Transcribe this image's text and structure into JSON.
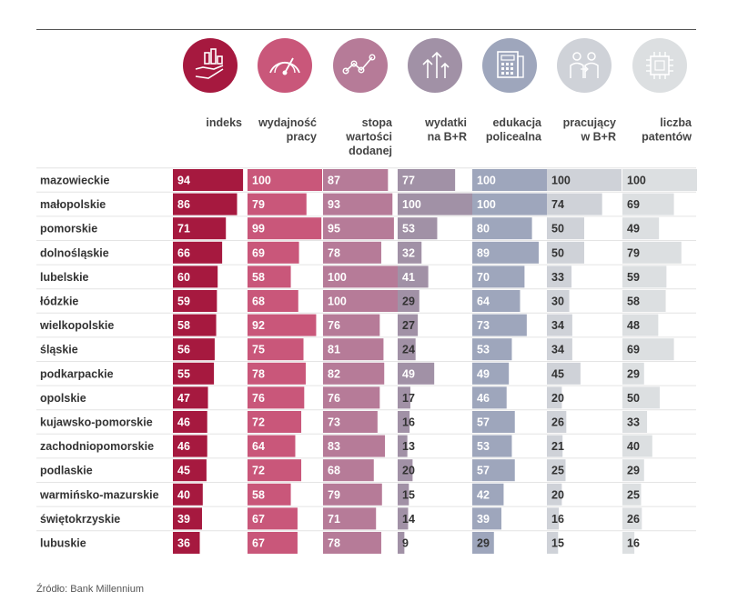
{
  "source": "Źródło:  Bank Millennium",
  "chart_data": {
    "type": "table",
    "columns": [
      {
        "key": "indeks",
        "label": [
          "indeks"
        ],
        "color": "#a6193f",
        "text_color": "#ffffff",
        "icon": "hand-chart-icon"
      },
      {
        "key": "wydajnosc",
        "label": [
          "wydajność",
          "pracy"
        ],
        "color": "#c9577a",
        "text_color": "#ffffff",
        "icon": "gauge-icon"
      },
      {
        "key": "stopa",
        "label": [
          "stopa",
          "wartości",
          "dodanej"
        ],
        "color": "#b67b98",
        "text_color": "#ffffff",
        "icon": "trend-line-icon"
      },
      {
        "key": "wydatki",
        "label": [
          "wydatki",
          "na B+R"
        ],
        "color": "#a191a6",
        "text_color": "#ffffff",
        "icon": "arrows-up-icon"
      },
      {
        "key": "edukacja",
        "label": [
          "edukacja",
          "policealna"
        ],
        "color": "#9ea6bc",
        "text_color": "#ffffff",
        "icon": "document-calculator-icon"
      },
      {
        "key": "pracujacy",
        "label": [
          "pracujący",
          "w B+R"
        ],
        "color": "#cfd2d8",
        "text_color": "#333333",
        "icon": "people-icon"
      },
      {
        "key": "patenty",
        "label": [
          "liczba",
          "patentów"
        ],
        "color": "#dcdfe1",
        "text_color": "#333333",
        "icon": "chip-icon"
      }
    ],
    "rows": [
      {
        "region": "mazowieckie",
        "values": [
          94,
          100,
          87,
          77,
          100,
          100,
          100
        ]
      },
      {
        "region": "małopolskie",
        "values": [
          86,
          79,
          93,
          100,
          100,
          74,
          69
        ]
      },
      {
        "region": "pomorskie",
        "values": [
          71,
          99,
          95,
          53,
          80,
          50,
          49
        ]
      },
      {
        "region": "dolnośląskie",
        "values": [
          66,
          69,
          78,
          32,
          89,
          50,
          79
        ]
      },
      {
        "region": "lubelskie",
        "values": [
          60,
          58,
          100,
          41,
          70,
          33,
          59
        ]
      },
      {
        "region": "łódzkie",
        "values": [
          59,
          68,
          100,
          29,
          64,
          30,
          58
        ]
      },
      {
        "region": "wielkopolskie",
        "values": [
          58,
          92,
          76,
          27,
          73,
          34,
          48
        ]
      },
      {
        "region": "śląskie",
        "values": [
          56,
          75,
          81,
          24,
          53,
          34,
          69
        ]
      },
      {
        "region": "podkarpackie",
        "values": [
          55,
          78,
          82,
          49,
          49,
          45,
          29
        ]
      },
      {
        "region": "opolskie",
        "values": [
          47,
          76,
          76,
          17,
          46,
          20,
          50
        ]
      },
      {
        "region": "kujawsko-pomorskie",
        "values": [
          46,
          72,
          73,
          16,
          57,
          26,
          33
        ]
      },
      {
        "region": "zachodniopomorskie",
        "values": [
          46,
          64,
          83,
          13,
          53,
          21,
          40
        ]
      },
      {
        "region": "podlaskie",
        "values": [
          45,
          72,
          68,
          20,
          57,
          25,
          29
        ]
      },
      {
        "region": "warmińsko-mazurskie",
        "values": [
          40,
          58,
          79,
          15,
          42,
          20,
          25
        ]
      },
      {
        "region": "świętokrzyskie",
        "values": [
          39,
          67,
          71,
          14,
          39,
          16,
          26
        ]
      },
      {
        "region": "lubuskie",
        "values": [
          36,
          67,
          78,
          9,
          29,
          15,
          16
        ]
      }
    ],
    "max_value": 100
  }
}
